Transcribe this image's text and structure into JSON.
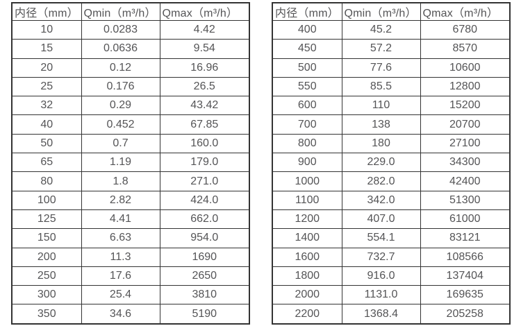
{
  "colors": {
    "background": "#ffffff",
    "border": "#333333",
    "text": "#545456"
  },
  "tables": [
    {
      "name": "flow-rates-small-diameters",
      "headers": [
        "内径（mm）",
        "Qmin（m³/h）",
        "Qmax（m³/h）"
      ],
      "rows": [
        [
          "10",
          "0.0283",
          "4.42"
        ],
        [
          "15",
          "0.0636",
          "9.54"
        ],
        [
          "20",
          "0.12",
          "16.96"
        ],
        [
          "25",
          "0.176",
          "26.5"
        ],
        [
          "32",
          "0.29",
          "43.42"
        ],
        [
          "40",
          "0.452",
          "67.85"
        ],
        [
          "50",
          "0.7",
          "160.0"
        ],
        [
          "65",
          "1.19",
          "179.0"
        ],
        [
          "80",
          "1.8",
          "271.0"
        ],
        [
          "100",
          "2.82",
          "424.0"
        ],
        [
          "125",
          "4.41",
          "662.0"
        ],
        [
          "150",
          "6.63",
          "954.0"
        ],
        [
          "200",
          "11.3",
          "1690"
        ],
        [
          "250",
          "17.6",
          "2650"
        ],
        [
          "300",
          "25.4",
          "3810"
        ],
        [
          "350",
          "34.6",
          "5190"
        ]
      ]
    },
    {
      "name": "flow-rates-large-diameters",
      "headers": [
        "内径（mm）",
        "Qmin（m³/h）",
        "Qmax（m³/h）"
      ],
      "rows": [
        [
          "400",
          "45.2",
          "6780"
        ],
        [
          "450",
          "57.2",
          "8570"
        ],
        [
          "500",
          "77.6",
          "10600"
        ],
        [
          "550",
          "85.5",
          "12800"
        ],
        [
          "600",
          "110",
          "15200"
        ],
        [
          "700",
          "138",
          "20700"
        ],
        [
          "800",
          "180",
          "27100"
        ],
        [
          "900",
          "229.0",
          "34300"
        ],
        [
          "1000",
          "282.0",
          "42400"
        ],
        [
          "1100",
          "342.0",
          "51300"
        ],
        [
          "1200",
          "407.0",
          "61000"
        ],
        [
          "1400",
          "554.1",
          "83121"
        ],
        [
          "1600",
          "732.7",
          "108566"
        ],
        [
          "1800",
          "916.0",
          "137404"
        ],
        [
          "2000",
          "1131.0",
          "169635"
        ],
        [
          "2200",
          "1368.4",
          "205258"
        ]
      ]
    }
  ]
}
